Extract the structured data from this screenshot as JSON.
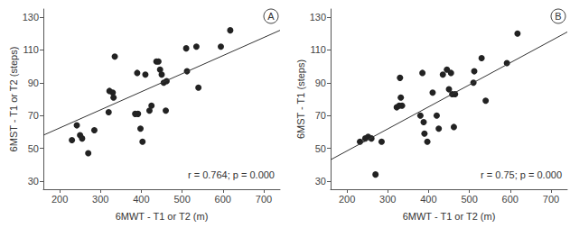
{
  "chart_data": [
    {
      "type": "scatter",
      "title": "A",
      "x_label": "6MWT - T1 or T2 (m)",
      "y_label": "6MST - T1 or T2 (steps)",
      "annotation": "r = 0.764; p = 0.000",
      "xlim": [
        160,
        740
      ],
      "ylim": [
        25,
        135
      ],
      "xticks": [
        200,
        300,
        400,
        500,
        600,
        700
      ],
      "yticks": [
        30,
        50,
        70,
        90,
        110,
        130
      ],
      "grid": false,
      "series": [
        {
          "type": "scatter",
          "marker": "circle",
          "color": "#222222",
          "x": [
            230,
            242,
            250,
            255,
            270,
            285,
            320,
            322,
            330,
            332,
            335,
            385,
            390,
            392,
            398,
            403,
            410,
            420,
            425,
            437,
            442,
            446,
            450,
            455,
            462,
            460,
            510,
            512,
            535,
            540,
            595,
            618
          ],
          "values": [
            55,
            64,
            58,
            56,
            47,
            61,
            72,
            85,
            84,
            81,
            106,
            71,
            96,
            71,
            62,
            54,
            95,
            73,
            76,
            103,
            103,
            98,
            95,
            90,
            91,
            73,
            111,
            97,
            112,
            87,
            112,
            122
          ]
        },
        {
          "type": "line",
          "line_style": "solid",
          "color": "#333333",
          "x": [
            160,
            740
          ],
          "values": [
            58,
            122
          ]
        }
      ]
    },
    {
      "type": "scatter",
      "title": "B",
      "x_label": "6MWT - T1 or T2 (m)",
      "y_label": "6MST - T1 (steps)",
      "annotation": "r = 0.75; p = 0.000",
      "xlim": [
        160,
        740
      ],
      "ylim": [
        25,
        135
      ],
      "xticks": [
        200,
        300,
        400,
        500,
        600,
        700
      ],
      "yticks": [
        30,
        50,
        70,
        90,
        110,
        130
      ],
      "grid": false,
      "series": [
        {
          "type": "scatter",
          "marker": "circle",
          "color": "#222222",
          "x": [
            232,
            245,
            252,
            260,
            270,
            285,
            322,
            328,
            330,
            332,
            335,
            380,
            385,
            388,
            390,
            397,
            410,
            420,
            425,
            435,
            445,
            450,
            455,
            458,
            465,
            462,
            510,
            512,
            530,
            540,
            592,
            618
          ],
          "values": [
            54,
            56,
            57,
            56,
            34,
            54,
            75,
            76,
            93,
            81,
            76,
            70,
            96,
            66,
            59,
            54,
            84,
            70,
            62,
            95,
            98,
            86,
            96,
            83,
            83,
            63,
            90,
            97,
            105,
            79,
            102,
            120
          ]
        },
        {
          "type": "line",
          "line_style": "solid",
          "color": "#333333",
          "x": [
            160,
            740
          ],
          "values": [
            43,
            121
          ]
        }
      ]
    }
  ]
}
